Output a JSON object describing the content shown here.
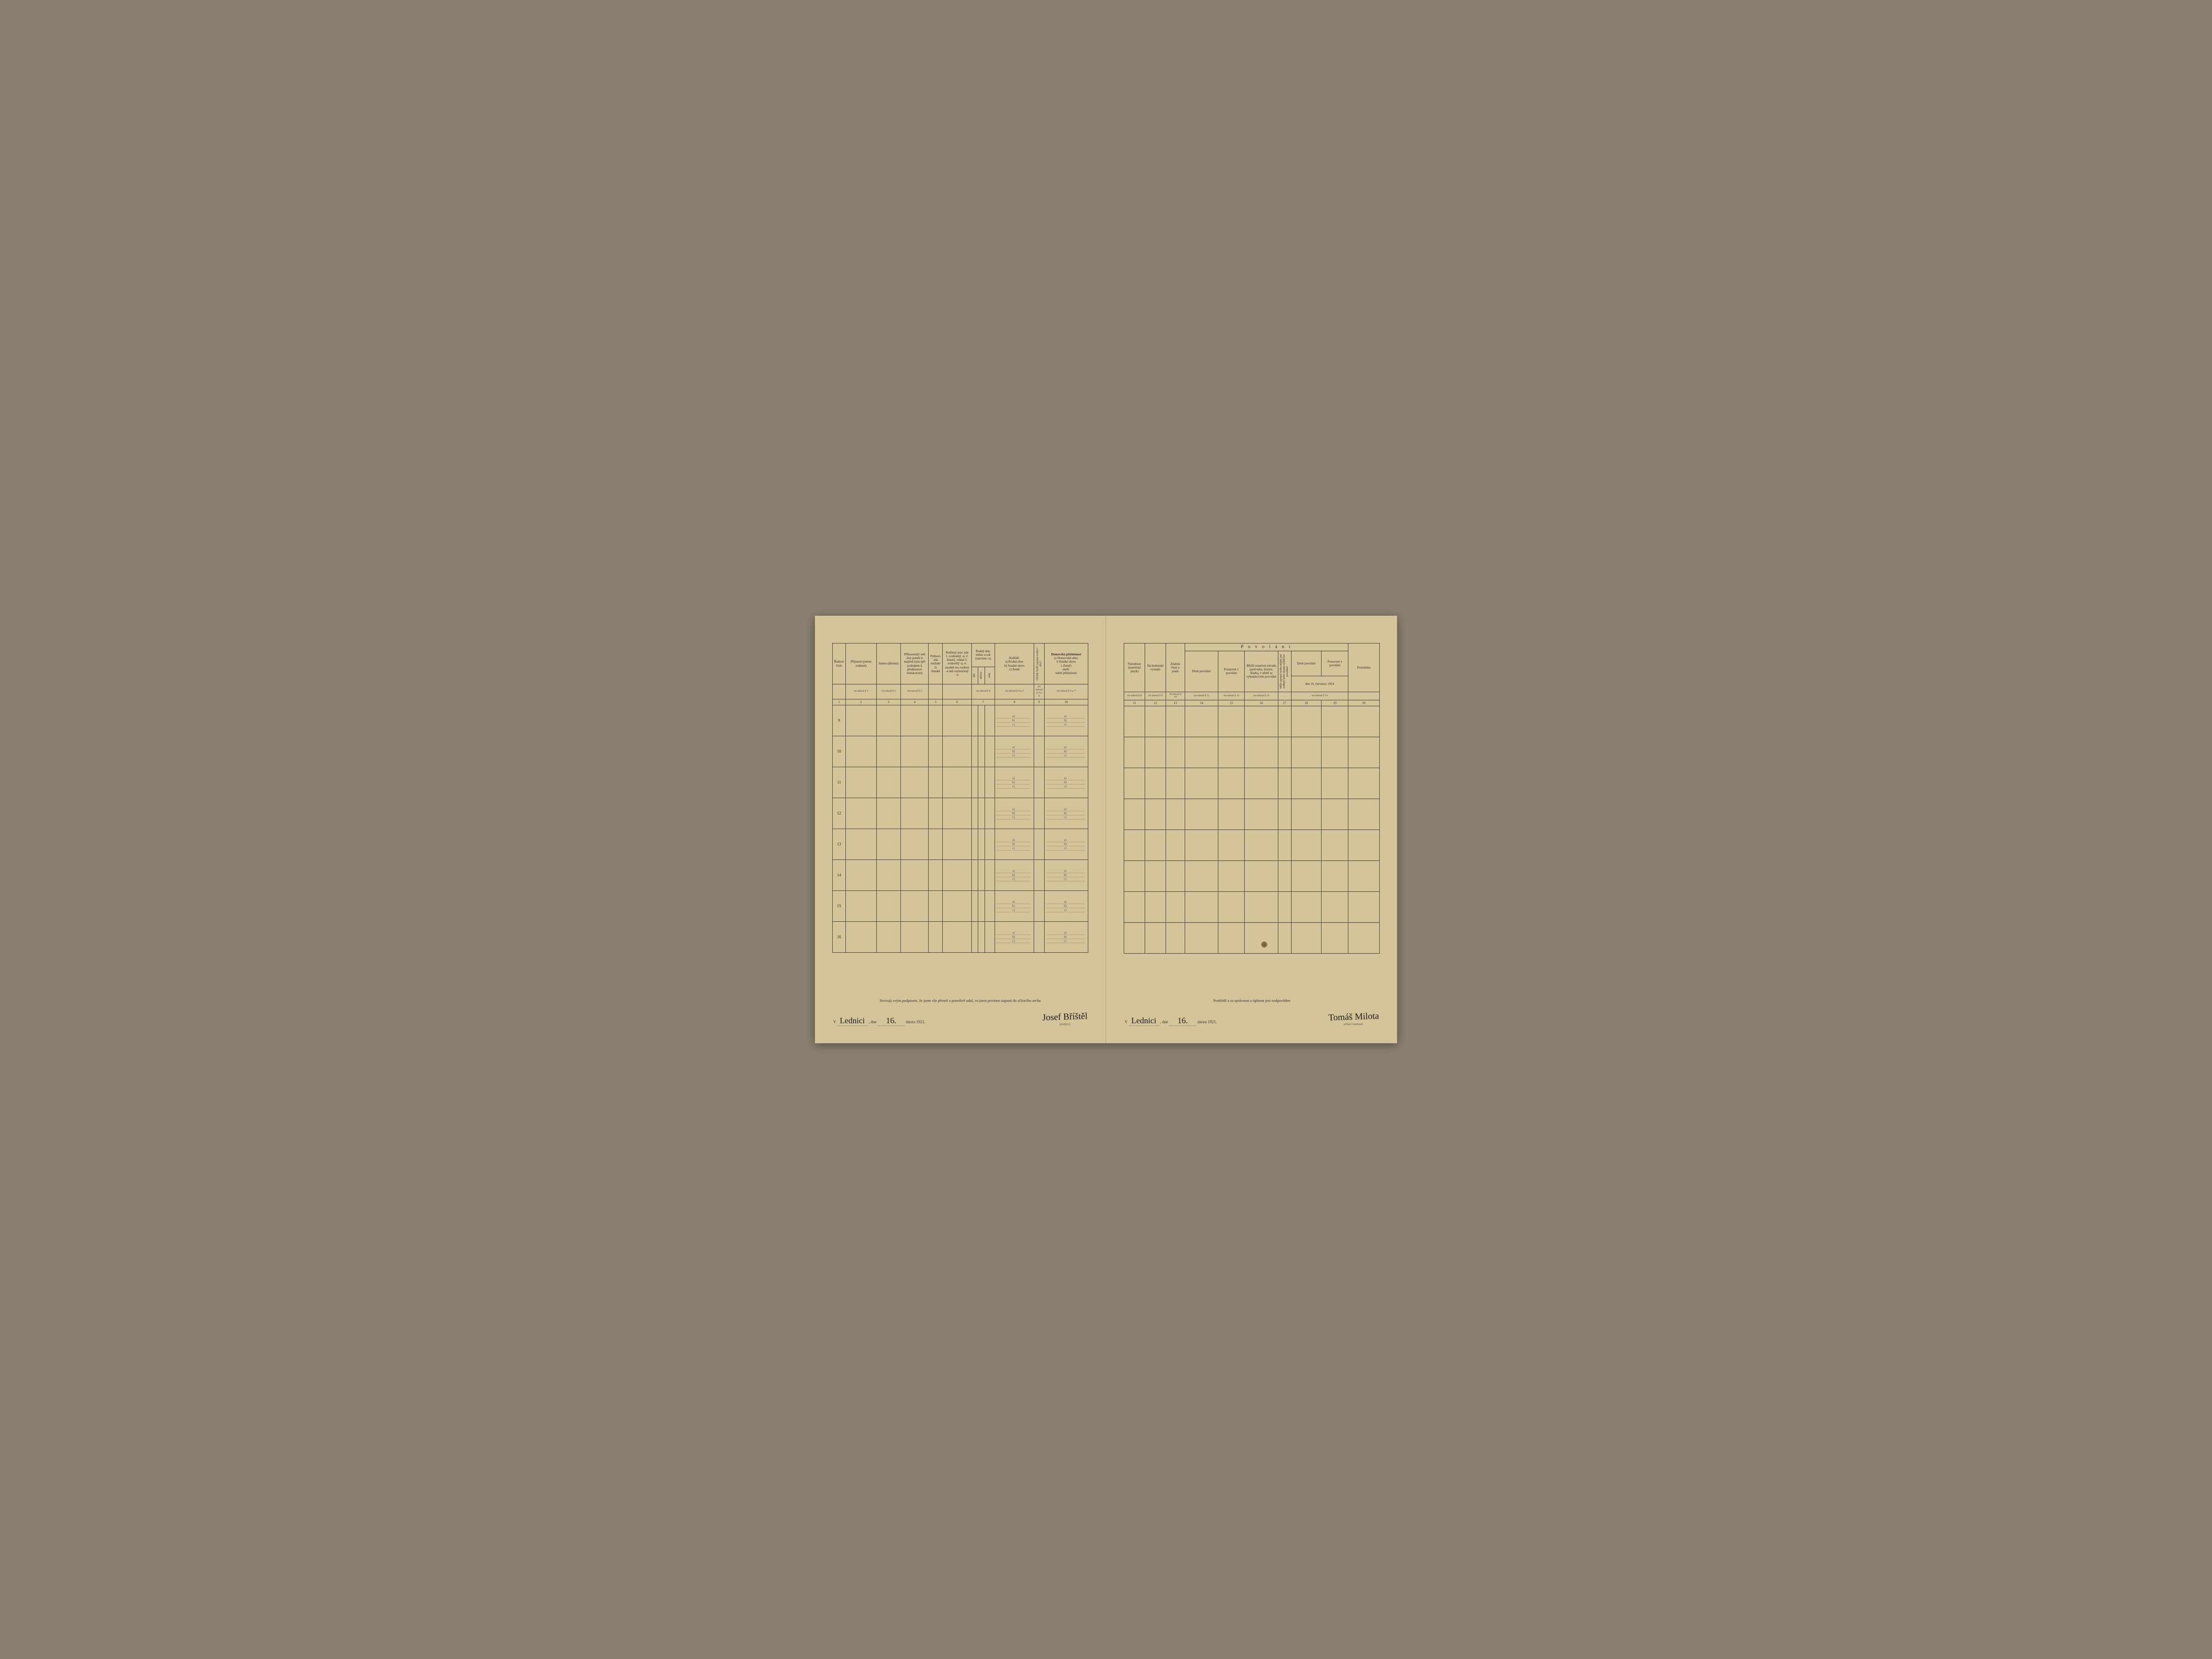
{
  "left": {
    "headers": {
      "c1": "Řadové číslo",
      "c2": "Příjmení (jméno rodinné)",
      "c3": "Jméno (křestní)",
      "c4": "Příbuzenský neb jiný poměr k majiteli bytu (při podnájmu k přednostovi domácnosti)",
      "c5": "Pohlaví, zda mužské či ženské",
      "c6": "Rodinný stav, zda 1. svobodný -á, 2. ženatý, vdaná 3. ovdovělý -á, 4. soudně roz-vedený -á neb rozloučený -á",
      "c7": "Rodný den, měsíc a rok (narozen -a)",
      "c7a": "dne",
      "c7b": "měsíce",
      "c7c": "roku",
      "c8": "Rodiště:",
      "c8a": "a) Rodná obec",
      "c8b": "b) Soudní okres",
      "c8c": "c) Země",
      "c9": "Od kdy bydlí zapsaná osoba v obci?",
      "c10": "Domovská příslušnost",
      "c10a": "(a Domovská obec",
      "c10b": "b Soudní okres",
      "c10c": "c Země)",
      "c10d": "aneb:",
      "c10e": "státní příslušnost"
    },
    "navod": {
      "c1": "viz návod § 1",
      "c2": "viz návod § 2",
      "c4": "viz návod § 3",
      "c7": "viz návod § 4",
      "c8": "viz návod § 4 a 5",
      "c9": "viz návod § 4 a 6",
      "c10": "viz návod § 4 a 7"
    },
    "rows": [
      "9",
      "10",
      "11",
      "12",
      "13",
      "14",
      "15",
      "16"
    ],
    "abc": {
      "a": "a)",
      "b": "b)",
      "c": "c)"
    },
    "footer": {
      "declaration": "Stvrzuji svým podpisem, že jsem vše přesně a pravdivě udal, co jsem povinen zapsati do sčítacího archu",
      "v": "V",
      "place": "Lednici",
      "dne": ", dne",
      "day": "16.",
      "month_year": "února 1921.",
      "signature": "Josef Bříštěl",
      "siglabel": "(podpis)"
    }
  },
  "right": {
    "headers": {
      "c11": "Národnost (mateřský jazyk)",
      "c12": "Ná-boženské vyznání",
      "c13": "Znalost čtení a psaní",
      "povolani": "P o v o l á n í",
      "c14": "Druh povolání",
      "c15": "Postavení v povolání",
      "c16": "Bližší označení závodu (pod-niku, ústavu, úřadu), v němž se vykonává toto povolání",
      "c17": "Měla zapsaná osoba nějaké jiné vedlejší nebo vlastní výdělečné povolání?",
      "c18": "Druh povolání",
      "c19": "Postavení v povolání",
      "c20": "Poznámka",
      "date1914": "dne 16. července 1914"
    },
    "navod": {
      "c11": "viz návod § 8",
      "c12": "viz návod § 9",
      "c13": "viz návod § 10",
      "c14": "viz návod § 11",
      "c15": "viz návod § 12",
      "c16": "viz návod § 13",
      "c18": "viz návod § 14"
    },
    "footer": {
      "declaration": "Prohlédl a za správnost a úplnost jest zodpověden",
      "v": "V",
      "place": "Lednici",
      "dne": ", dne",
      "day": "16.",
      "month_year": "února 1921.",
      "signature": "Tomáš Milota",
      "siglabel": "sčítací komisař."
    }
  },
  "colors": {
    "paper": "#d4c49a",
    "ink": "#2a2a2a",
    "border": "#3a3a3a"
  }
}
